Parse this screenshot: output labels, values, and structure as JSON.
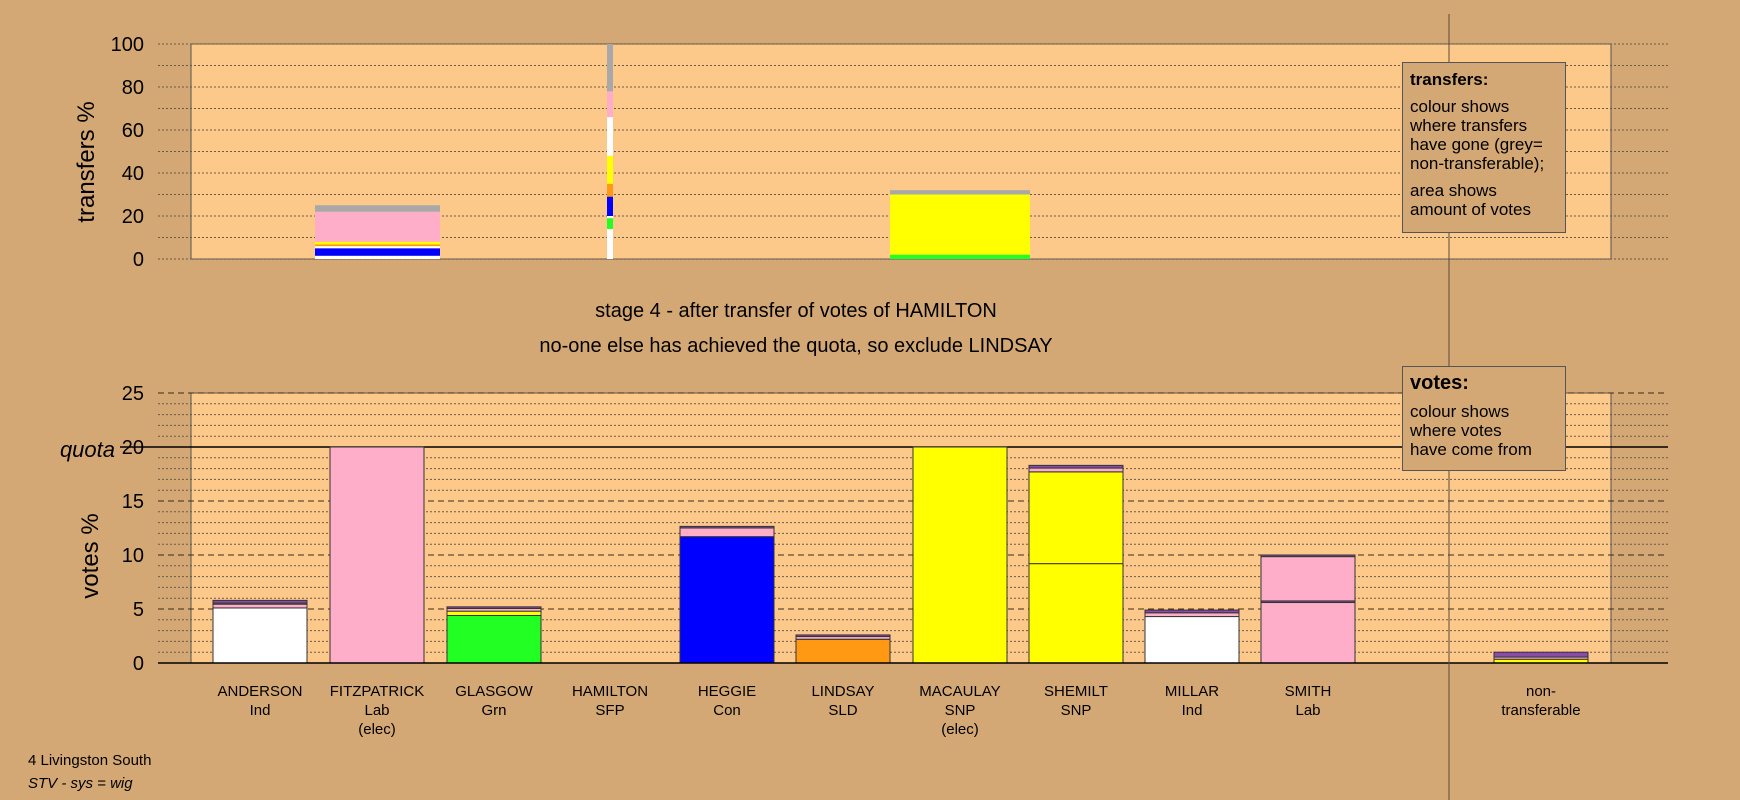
{
  "stage": {
    "line1": "stage 4 - after transfer of votes of HAMILTON",
    "line2": "no-one else has achieved the quota, so exclude LINDSAY"
  },
  "transfers_legend": {
    "title": "transfers:",
    "lines": [
      "colour shows",
      "where transfers",
      "have gone (grey=",
      "non-transferable);"
    ],
    "lines2": [
      "area shows",
      "amount of votes"
    ]
  },
  "votes_legend": {
    "title": "votes:",
    "lines": [
      "colour shows",
      "where votes",
      "have come from"
    ]
  },
  "footer": {
    "ward": "4 Livingston South",
    "system": "STV - sys = wig"
  },
  "colors": {
    "background": "#d4a874",
    "plot_area": "#fdc98b",
    "white": "#ffffff",
    "pink": "#ffaec9",
    "green": "#22ff22",
    "blue": "#0000ff",
    "orange": "#ff9914",
    "yellow": "#ffff00",
    "grey": "#a8a8a8",
    "purple": "#8a4ca8"
  },
  "chart_data": [
    {
      "type": "bar",
      "chart": "transfers",
      "ylabel": "transfers %",
      "ylim": [
        0,
        100
      ],
      "yticks": [
        0,
        20,
        40,
        60,
        80,
        100
      ],
      "bars": [
        {
          "candidate": "ANDERSON",
          "width_pct": 88,
          "segments": [
            {
              "color": "white",
              "value": 1.5
            },
            {
              "color": "blue",
              "value": 3.5
            },
            {
              "color": "white",
              "value": 1
            },
            {
              "color": "orange",
              "value": 0.8
            },
            {
              "color": "yellow",
              "value": 1.2
            },
            {
              "color": "pink",
              "value": 14
            },
            {
              "color": "grey",
              "value": 3
            }
          ]
        },
        {
          "candidate": "HAMILTON",
          "width_pct": 4,
          "segments": [
            {
              "color": "white",
              "value": 14
            },
            {
              "color": "green",
              "value": 5
            },
            {
              "color": "white",
              "value": 1
            },
            {
              "color": "blue",
              "value": 9
            },
            {
              "color": "orange",
              "value": 6
            },
            {
              "color": "yellow",
              "value": 13
            },
            {
              "color": "white",
              "value": 18
            },
            {
              "color": "pink",
              "value": 12
            },
            {
              "color": "grey",
              "value": 22
            }
          ]
        },
        {
          "candidate": "MACAULAY",
          "width_pct": 100,
          "segments": [
            {
              "color": "green",
              "value": 2
            },
            {
              "color": "yellow",
              "value": 28
            },
            {
              "color": "grey",
              "value": 2
            }
          ]
        }
      ]
    },
    {
      "type": "bar",
      "chart": "votes",
      "ylabel": "votes %",
      "ylim": [
        0,
        25
      ],
      "yticks": [
        0,
        5,
        10,
        15,
        20,
        25
      ],
      "quota": 20,
      "quota_label": "quota",
      "categories": [
        {
          "name": "ANDERSON",
          "party": "Ind",
          "note": ""
        },
        {
          "name": "FITZPATRICK",
          "party": "Lab",
          "note": "(elec)"
        },
        {
          "name": "GLASGOW",
          "party": "Grn",
          "note": ""
        },
        {
          "name": "HAMILTON",
          "party": "SFP",
          "note": ""
        },
        {
          "name": "HEGGIE",
          "party": "Con",
          "note": ""
        },
        {
          "name": "LINDSAY",
          "party": "SLD",
          "note": ""
        },
        {
          "name": "MACAULAY",
          "party": "SNP",
          "note": "(elec)"
        },
        {
          "name": "SHEMILT",
          "party": "SNP",
          "note": ""
        },
        {
          "name": "MILLAR",
          "party": "Ind",
          "note": ""
        },
        {
          "name": "SMITH",
          "party": "Lab",
          "note": ""
        },
        {
          "name": "non-",
          "party": "transferable",
          "note": ""
        }
      ],
      "bars": [
        {
          "candidate": "ANDERSON",
          "segments": [
            {
              "color": "white",
              "value": 5.1
            },
            {
              "color": "pink",
              "value": 0.35
            },
            {
              "color": "white",
              "value": 0.1
            },
            {
              "color": "purple",
              "value": 0.25
            }
          ]
        },
        {
          "candidate": "FITZPATRICK",
          "segments": [
            {
              "color": "pink",
              "value": 20
            }
          ]
        },
        {
          "candidate": "GLASGOW",
          "segments": [
            {
              "color": "green",
              "value": 4.4
            },
            {
              "color": "yellow",
              "value": 0.4
            },
            {
              "color": "pink",
              "value": 0.25
            },
            {
              "color": "purple",
              "value": 0.15
            }
          ]
        },
        {
          "candidate": "HAMILTON",
          "segments": []
        },
        {
          "candidate": "HEGGIE",
          "segments": [
            {
              "color": "blue",
              "value": 11.7
            },
            {
              "color": "pink",
              "value": 0.8
            },
            {
              "color": "purple",
              "value": 0.15
            }
          ]
        },
        {
          "candidate": "LINDSAY",
          "segments": [
            {
              "color": "orange",
              "value": 2.2
            },
            {
              "color": "pink",
              "value": 0.25
            },
            {
              "color": "purple",
              "value": 0.15
            }
          ]
        },
        {
          "candidate": "MACAULAY",
          "segments": [
            {
              "color": "yellow",
              "value": 20
            }
          ]
        },
        {
          "candidate": "SHEMILT",
          "segments": [
            {
              "color": "yellow",
              "value": 9.2
            },
            {
              "color": "yellow",
              "value": 8.5
            },
            {
              "color": "pink",
              "value": 0.35
            },
            {
              "color": "purple",
              "value": 0.25
            }
          ]
        },
        {
          "candidate": "MILLAR",
          "segments": [
            {
              "color": "white",
              "value": 4.3
            },
            {
              "color": "pink",
              "value": 0.35
            },
            {
              "color": "purple",
              "value": 0.25
            }
          ]
        },
        {
          "candidate": "SMITH",
          "segments": [
            {
              "color": "pink",
              "value": 5.6
            },
            {
              "color": "purple",
              "value": 0.15
            },
            {
              "color": "pink",
              "value": 4.1
            },
            {
              "color": "purple",
              "value": 0.15
            }
          ]
        },
        {
          "candidate": "non-transferable",
          "segments": [
            {
              "color": "yellow",
              "value": 0.35
            },
            {
              "color": "pink",
              "value": 0.2
            },
            {
              "color": "purple",
              "value": 0.45
            }
          ]
        }
      ]
    }
  ]
}
